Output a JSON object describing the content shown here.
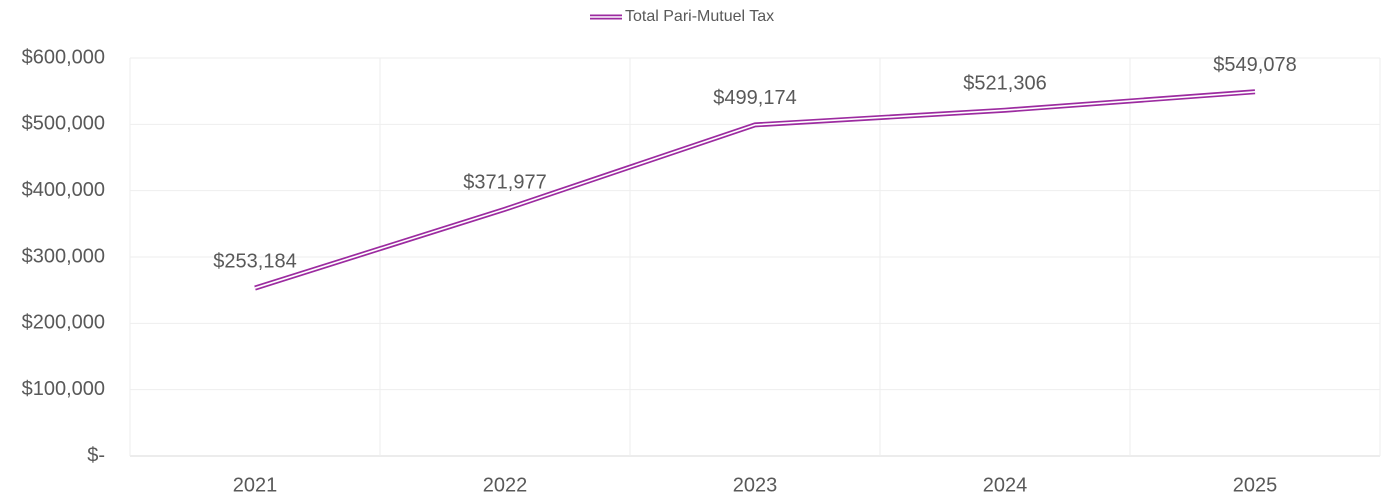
{
  "chart_data": {
    "type": "line",
    "categories": [
      "2021",
      "2022",
      "2023",
      "2024",
      "2025"
    ],
    "series": [
      {
        "name": "Total Pari-Mutuel Tax",
        "color": "#9c2ba0",
        "values": [
          253184,
          371977,
          499174,
          521306,
          549078
        ],
        "value_labels": [
          "$253,184",
          "$371,977",
          "$499,174",
          "$521,306",
          "$549,078"
        ]
      }
    ],
    "ylim": [
      0,
      600000
    ],
    "yticks": [
      {
        "value": 0,
        "label": "$-"
      },
      {
        "value": 100000,
        "label": "$100,000"
      },
      {
        "value": 200000,
        "label": "$200,000"
      },
      {
        "value": 300000,
        "label": "$300,000"
      },
      {
        "value": 400000,
        "label": "$400,000"
      },
      {
        "value": 500000,
        "label": "$500,000"
      },
      {
        "value": 600000,
        "label": "$600,000"
      }
    ],
    "grid": true,
    "legend": "top"
  }
}
